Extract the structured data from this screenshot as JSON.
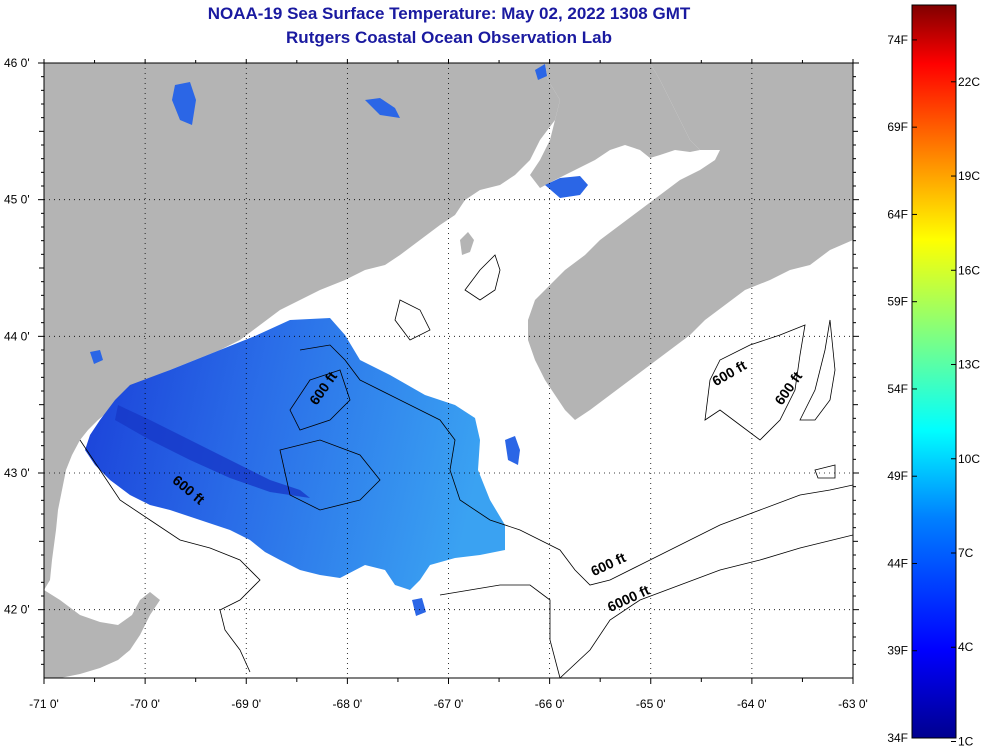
{
  "title": {
    "line1": "NOAA-19 Sea Surface Temperature:  May 02, 2022 1308 GMT",
    "line2": "Rutgers Coastal Ocean Observation Lab"
  },
  "map": {
    "lat_ticks": [
      {
        "value": 46,
        "label": "46 0'"
      },
      {
        "value": 45,
        "label": "45 0'"
      },
      {
        "value": 44,
        "label": "44 0'"
      },
      {
        "value": 43,
        "label": "43 0'"
      },
      {
        "value": 42,
        "label": "42 0'"
      }
    ],
    "lon_ticks": [
      {
        "value": -71,
        "label": "-71 0'"
      },
      {
        "value": -70,
        "label": "-70 0'"
      },
      {
        "value": -69,
        "label": "-69 0'"
      },
      {
        "value": -68,
        "label": "-68 0'"
      },
      {
        "value": -67,
        "label": "-67 0'"
      },
      {
        "value": -66,
        "label": "-66 0'"
      },
      {
        "value": -65,
        "label": "-65 0'"
      },
      {
        "value": -64,
        "label": "-64 0'"
      },
      {
        "value": -63,
        "label": "-63 0'"
      }
    ],
    "lon_range": [
      -71.0,
      -63.0
    ],
    "lat_range": [
      41.5,
      46.0
    ],
    "contour_labels": [
      {
        "text": "600 ft",
        "lon": -68.2,
        "lat": 43.6,
        "angle": -55
      },
      {
        "text": "600 ft",
        "lon": -69.6,
        "lat": 42.85,
        "angle": 40
      },
      {
        "text": "600 ft",
        "lon": -64.2,
        "lat": 43.7,
        "angle": -30
      },
      {
        "text": "600 ft",
        "lon": -63.6,
        "lat": 43.6,
        "angle": -55
      },
      {
        "text": "600 ft",
        "lon": -65.4,
        "lat": 42.3,
        "angle": -25
      },
      {
        "text": "6000 ft",
        "lon": -65.2,
        "lat": 42.05,
        "angle": -25
      }
    ],
    "colors": {
      "land": "#b4b4b4",
      "ocean_nodata": "#ffffff",
      "sst_low": "#1f4fe6",
      "sst_high": "#3aa0f0"
    }
  },
  "colorbar": {
    "f_labels": [
      {
        "value": 74,
        "label": "74F"
      },
      {
        "value": 69,
        "label": "69F"
      },
      {
        "value": 64,
        "label": "64F"
      },
      {
        "value": 59,
        "label": "59F"
      },
      {
        "value": 54,
        "label": "54F"
      },
      {
        "value": 49,
        "label": "49F"
      },
      {
        "value": 44,
        "label": "44F"
      },
      {
        "value": 39,
        "label": "39F"
      },
      {
        "value": 34,
        "label": "34F"
      }
    ],
    "c_labels": [
      {
        "value": 22,
        "label": "22C"
      },
      {
        "value": 19,
        "label": "19C"
      },
      {
        "value": 16,
        "label": "16C"
      },
      {
        "value": 13,
        "label": "13C"
      },
      {
        "value": 10,
        "label": "10C"
      },
      {
        "value": 7,
        "label": "7C"
      },
      {
        "value": 4,
        "label": "4C"
      },
      {
        "value": 1,
        "label": "1C"
      }
    ],
    "range_f": [
      34,
      76
    ]
  }
}
